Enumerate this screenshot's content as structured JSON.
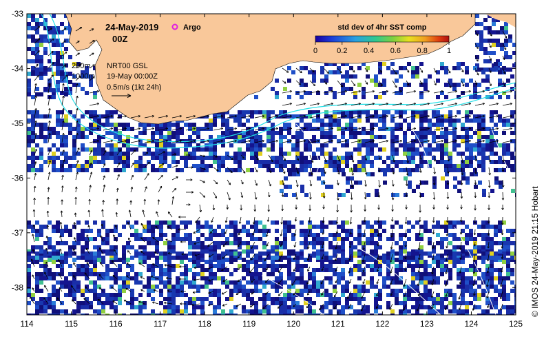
{
  "header": {
    "date": "24-May-2019",
    "hour": "00Z",
    "argo_label": "Argo"
  },
  "legend": {
    "contour_200": "200m",
    "contour_1000": "1000m",
    "product": "NRT00 GSL",
    "product_date": "19-May 00:00Z",
    "vector_scale": "0.5m/s (1kt 24h)"
  },
  "colorbar": {
    "title": "std dev of 4hr SST comp",
    "ticks": [
      "0",
      "0.2",
      "0.4",
      "0.6",
      "0.8",
      "1"
    ],
    "colors": [
      "#1a00a0",
      "#1b3cd8",
      "#2aa0e0",
      "#30c890",
      "#7ed040",
      "#e8e020",
      "#f0a020",
      "#e04010",
      "#b01010"
    ]
  },
  "credit": "© IMOS 24-May-2019 21:15 Hobart",
  "axes": {
    "lon_ticks": [
      "114",
      "115",
      "116",
      "117",
      "118",
      "119",
      "120",
      "121",
      "122",
      "123",
      "124",
      "125"
    ],
    "lat_ticks": [
      "-33",
      "-34",
      "-35",
      "-36",
      "-37",
      "-38"
    ],
    "lon_range": [
      114,
      125
    ],
    "lat_range": [
      -38.5,
      -33
    ]
  },
  "colors": {
    "land": "#f9c89a",
    "contour_200": "#20e0e8",
    "contour_1000": "#20e0e8",
    "argo": "#e020e0",
    "ssh_contour": "#ffffff"
  }
}
